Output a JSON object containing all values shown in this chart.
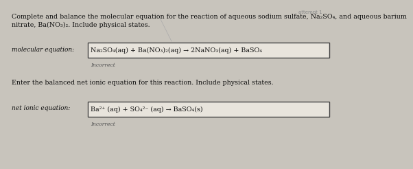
{
  "bg_color": "#c8c4bc",
  "box_color": "#e8e4dc",
  "box_edge_color": "#444444",
  "text_color": "#111111",
  "incorrect_color": "#555555",
  "title_line1": "Complete and balance the molecular equation for the reaction of aqueous sodium sulfate, Na₂SO₄, and aqueous barium",
  "title_line2": "nitrate, Ba(NO₃)₂. Include physical states.",
  "mol_label": "molecular equation:",
  "mol_equation": "Na₂SO₄(aq) + Ba(NO₃)₂(aq) → 2NaNO₃(aq) + BaSO₄",
  "mol_incorrect": "Incorrect",
  "net_prompt": "Enter the balanced net ionic equation for this reaction. Include physical states.",
  "net_label": "net ionic equation:",
  "net_equation": "Ba²⁺ (aq) + SO₄²⁻ (aq) → BaSO₄(s)",
  "net_incorrect": "Incorrect",
  "title_fontsize": 6.8,
  "label_fontsize": 6.5,
  "eq_fontsize": 6.8,
  "incorrect_fontsize": 5.5,
  "prompt_fontsize": 6.8
}
